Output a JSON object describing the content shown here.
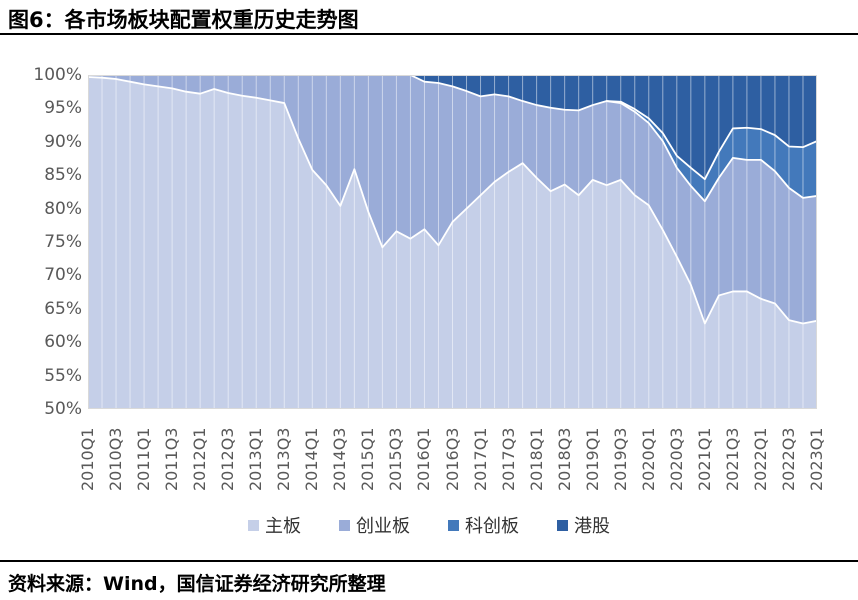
{
  "figure": {
    "title": "图6：各市场板块配置权重历史走势图",
    "source": "资料来源：Wind，国信证券经济研究所整理"
  },
  "colors": {
    "main_board": "#c5cfe8",
    "chinext": "#9aacd8",
    "star_market": "#4379bb",
    "hk_stocks": "#2e5fa2",
    "boundary_line": "#ffffff",
    "plot_border": "#d9d9d9",
    "axis_text": "#595959"
  },
  "chart_data": {
    "type": "area",
    "stacked": true,
    "stack_total": 100,
    "title": "各市场板块配置权重历史走势图",
    "xlabel": "",
    "ylabel": "",
    "ylim": [
      50,
      100
    ],
    "ytick_labels": [
      "100%",
      "95%",
      "90%",
      "85%",
      "80%",
      "75%",
      "70%",
      "65%",
      "60%",
      "55%",
      "50%"
    ],
    "xtick_every": 2,
    "grid": "vertical-white-quarter-lines",
    "legend_position": "bottom",
    "categories": [
      "2010Q1",
      "2010Q2",
      "2010Q3",
      "2010Q4",
      "2011Q1",
      "2011Q2",
      "2011Q3",
      "2011Q4",
      "2012Q1",
      "2012Q2",
      "2012Q3",
      "2012Q4",
      "2013Q1",
      "2013Q2",
      "2013Q3",
      "2013Q4",
      "2014Q1",
      "2014Q2",
      "2014Q3",
      "2014Q4",
      "2015Q1",
      "2015Q2",
      "2015Q3",
      "2015Q4",
      "2016Q1",
      "2016Q2",
      "2016Q3",
      "2016Q4",
      "2017Q1",
      "2017Q2",
      "2017Q3",
      "2017Q4",
      "2018Q1",
      "2018Q2",
      "2018Q3",
      "2018Q4",
      "2019Q1",
      "2019Q2",
      "2019Q3",
      "2019Q4",
      "2020Q1",
      "2020Q2",
      "2020Q3",
      "2020Q4",
      "2021Q1",
      "2021Q2",
      "2021Q3",
      "2021Q4",
      "2022Q1",
      "2022Q2",
      "2022Q3",
      "2022Q4",
      "2023Q1"
    ],
    "series": [
      {
        "name": "主板",
        "color": "#c5cfe8",
        "values": [
          99.7,
          99.6,
          99.4,
          99.0,
          98.6,
          98.3,
          98.0,
          97.5,
          97.2,
          97.9,
          97.3,
          96.9,
          96.6,
          96.2,
          95.8,
          90.5,
          85.8,
          83.5,
          80.4,
          85.9,
          79.5,
          74.2,
          76.6,
          75.5,
          76.9,
          74.5,
          78.0,
          80.0,
          82.0,
          84.0,
          85.5,
          86.8,
          84.6,
          82.6,
          83.6,
          82.0,
          84.3,
          83.5,
          84.3,
          82.0,
          80.5,
          76.8,
          72.8,
          68.6,
          62.8,
          67.0,
          67.6,
          67.6,
          66.5,
          65.8,
          63.3,
          62.8,
          63.2
        ]
      },
      {
        "name": "创业板",
        "color": "#9aacd8",
        "values": [
          0.3,
          0.4,
          0.6,
          1.0,
          1.4,
          1.7,
          2.0,
          2.5,
          2.8,
          2.1,
          2.7,
          3.1,
          3.4,
          3.8,
          4.2,
          9.5,
          14.2,
          16.5,
          19.6,
          14.1,
          20.5,
          25.8,
          23.4,
          24.5,
          22.1,
          24.3,
          20.3,
          17.6,
          14.8,
          13.1,
          11.3,
          9.3,
          10.9,
          12.5,
          11.2,
          12.7,
          11.2,
          12.6,
          11.5,
          12.5,
          12.3,
          13.3,
          13.3,
          14.8,
          18.3,
          17.6,
          20.0,
          19.7,
          20.8,
          19.8,
          19.8,
          18.8,
          18.7
        ]
      },
      {
        "name": "科创板",
        "color": "#4379bb",
        "values": [
          0,
          0,
          0,
          0,
          0,
          0,
          0,
          0,
          0,
          0,
          0,
          0,
          0,
          0,
          0,
          0,
          0,
          0,
          0,
          0,
          0,
          0,
          0,
          0,
          0,
          0,
          0,
          0,
          0,
          0,
          0,
          0,
          0,
          0,
          0,
          0,
          0,
          0,
          0.2,
          0.4,
          0.7,
          1.2,
          1.8,
          2.7,
          3.3,
          3.9,
          4.4,
          4.8,
          4.6,
          5.4,
          6.2,
          7.6,
          8.2
        ]
      },
      {
        "name": "港股",
        "color": "#2e5fa2",
        "values": [
          0,
          0,
          0,
          0,
          0,
          0,
          0,
          0,
          0,
          0,
          0,
          0,
          0,
          0,
          0,
          0,
          0,
          0,
          0,
          0,
          0,
          0,
          0,
          0,
          1.0,
          1.2,
          1.7,
          2.4,
          3.2,
          2.9,
          3.2,
          3.9,
          4.5,
          4.9,
          5.2,
          5.3,
          4.5,
          3.9,
          4.0,
          5.1,
          6.5,
          8.7,
          12.1,
          13.9,
          15.6,
          11.5,
          8.0,
          7.9,
          8.1,
          9.0,
          10.7,
          10.8,
          9.9
        ]
      }
    ]
  }
}
